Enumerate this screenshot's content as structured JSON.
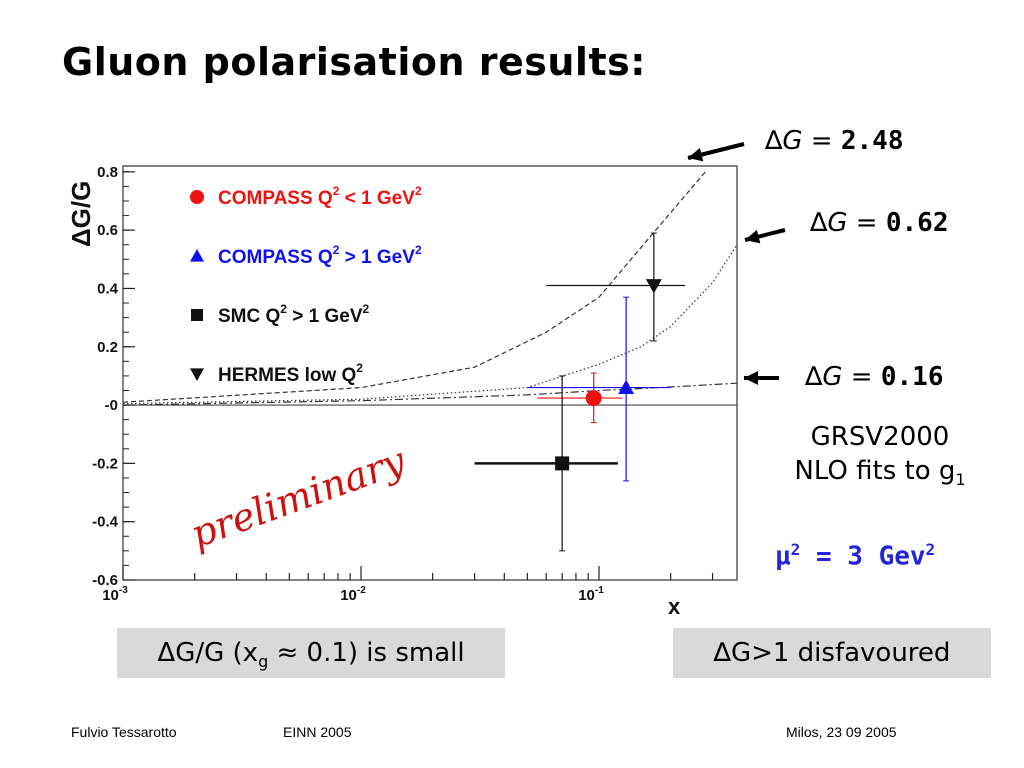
{
  "slide": {
    "title": "Gluon polarisation results:",
    "annot_dg248_label": "∆G =",
    "annot_dg248_value": "2.48",
    "annot_dg062_label": "∆G =",
    "annot_dg062_value": "0.62",
    "annot_dg016_label": "∆G =",
    "annot_dg016_value": "0.16",
    "grsv_line1": "GRSV2000",
    "grsv_line2_prefix": "NLO fits to g",
    "grsv_line2_sub": "1",
    "mu_prefix": "µ",
    "mu_sup": "2",
    "mu_mid": " = 3 Gev",
    "mu_sup2": "2",
    "box_left_prefix": "ΔG/G (x",
    "box_left_sub": "g",
    "box_left_suffix": " ≈ 0.1) is small",
    "box_right": "∆G>1 disfavoured",
    "footer_author": "Fulvio Tessarotto",
    "footer_conf": "EINN 2005",
    "footer_place": "Milos,   23 09 2005"
  },
  "chart_data": {
    "type": "scatter",
    "xscale": "log",
    "xlim": [
      0.001,
      0.38
    ],
    "ylim": [
      -0.6,
      0.82
    ],
    "ylabel": "ΔG/G",
    "xlabel": "x",
    "x_ticks": [
      {
        "v": 0.001,
        "mant": "10",
        "exp": "-3"
      },
      {
        "v": 0.01,
        "mant": "10",
        "exp": "-2"
      },
      {
        "v": 0.1,
        "mant": "10",
        "exp": "-1"
      }
    ],
    "y_ticks": [
      0.8,
      0.6,
      0.4,
      0.2,
      0,
      -0.2,
      -0.4,
      -0.6
    ],
    "y_tick_labels": [
      "0.8",
      "0.6",
      "0.4",
      "0.2",
      "-0",
      "-0.2",
      "-0.4",
      "-0.6"
    ],
    "watermark": "preliminary",
    "series": [
      {
        "name": "COMPASS Q² < 1 GeV²",
        "label": "COMPASS Q",
        "label_sup": "2",
        "label_mid": " < 1 GeV",
        "label_sup2": "2",
        "color": "#ee1111",
        "marker": "circle",
        "points": [
          {
            "x": 0.095,
            "y": 0.024,
            "ystat": [
              -0.06,
              0.11
            ],
            "xrange": [
              0.055,
              0.125
            ]
          }
        ]
      },
      {
        "name": "COMPASS Q² > 1 GeV²",
        "label": "COMPASS Q",
        "label_sup": "2",
        "label_mid": " > 1 GeV",
        "label_sup2": "2",
        "color": "#1111ee",
        "marker": "triangle-up",
        "points": [
          {
            "x": 0.13,
            "y": 0.06,
            "ystat": [
              -0.26,
              0.37
            ],
            "xrange": [
              0.05,
              0.2
            ]
          }
        ]
      },
      {
        "name": "SMC Q² > 1 GeV²",
        "label": "SMC Q",
        "label_sup": "2",
        "label_mid": " > 1 GeV",
        "label_sup2": "2",
        "color": "#111111",
        "marker": "square",
        "points": [
          {
            "x": 0.07,
            "y": -0.2,
            "ystat": [
              -0.5,
              0.1
            ],
            "xrange": [
              0.03,
              0.12
            ]
          }
        ]
      },
      {
        "name": "HERMES low Q²",
        "label": "HERMES low Q",
        "label_sup": "2",
        "label_mid": "",
        "label_sup2": "",
        "color": "#111111",
        "marker": "triangle-down",
        "points": [
          {
            "x": 0.17,
            "y": 0.41,
            "ystat": [
              0.22,
              0.59
            ],
            "xrange": [
              0.06,
              0.23
            ]
          }
        ]
      }
    ],
    "curves": [
      {
        "name": "ΔG = 2.48",
        "style": "dashed",
        "points": [
          [
            0.001,
            0.01
          ],
          [
            0.01,
            0.06
          ],
          [
            0.03,
            0.13
          ],
          [
            0.06,
            0.25
          ],
          [
            0.1,
            0.37
          ],
          [
            0.15,
            0.54
          ],
          [
            0.2,
            0.66
          ],
          [
            0.28,
            0.8
          ]
        ]
      },
      {
        "name": "ΔG = 0.62",
        "style": "dotted",
        "points": [
          [
            0.001,
            0.005
          ],
          [
            0.01,
            0.02
          ],
          [
            0.05,
            0.06
          ],
          [
            0.1,
            0.14
          ],
          [
            0.15,
            0.2
          ],
          [
            0.2,
            0.27
          ],
          [
            0.3,
            0.42
          ],
          [
            0.38,
            0.55
          ]
        ]
      },
      {
        "name": "ΔG = 0.16",
        "style": "dashdot",
        "points": [
          [
            0.001,
            0.0
          ],
          [
            0.01,
            0.015
          ],
          [
            0.05,
            0.035
          ],
          [
            0.1,
            0.05
          ],
          [
            0.2,
            0.062
          ],
          [
            0.38,
            0.075
          ]
        ]
      }
    ]
  }
}
